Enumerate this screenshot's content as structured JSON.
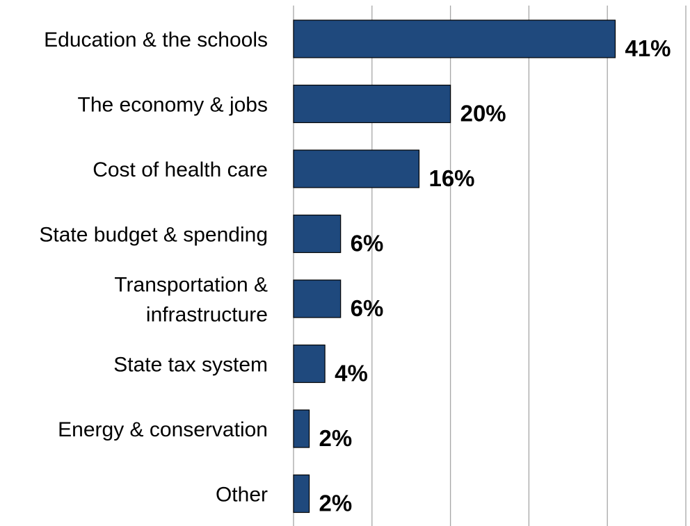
{
  "chart_data": {
    "type": "bar",
    "orientation": "horizontal",
    "categories": [
      [
        "Education & the schools"
      ],
      [
        "The economy & jobs"
      ],
      [
        "Cost of health care"
      ],
      [
        "State budget & spending"
      ],
      [
        "Transportation &",
        "infrastructure"
      ],
      [
        "State tax system"
      ],
      [
        "Energy & conservation"
      ],
      [
        "Other"
      ]
    ],
    "values": [
      41,
      20,
      16,
      6,
      6,
      4,
      2,
      2
    ],
    "value_labels": [
      "41%",
      "20%",
      "16%",
      "6%",
      "6%",
      "4%",
      "2%",
      "2%"
    ],
    "title": "",
    "xlabel": "",
    "ylabel": "",
    "xlim": [
      0,
      50
    ],
    "grid": true,
    "bar_color": "#1f497d",
    "gridline_color": "#a6a6a6"
  }
}
